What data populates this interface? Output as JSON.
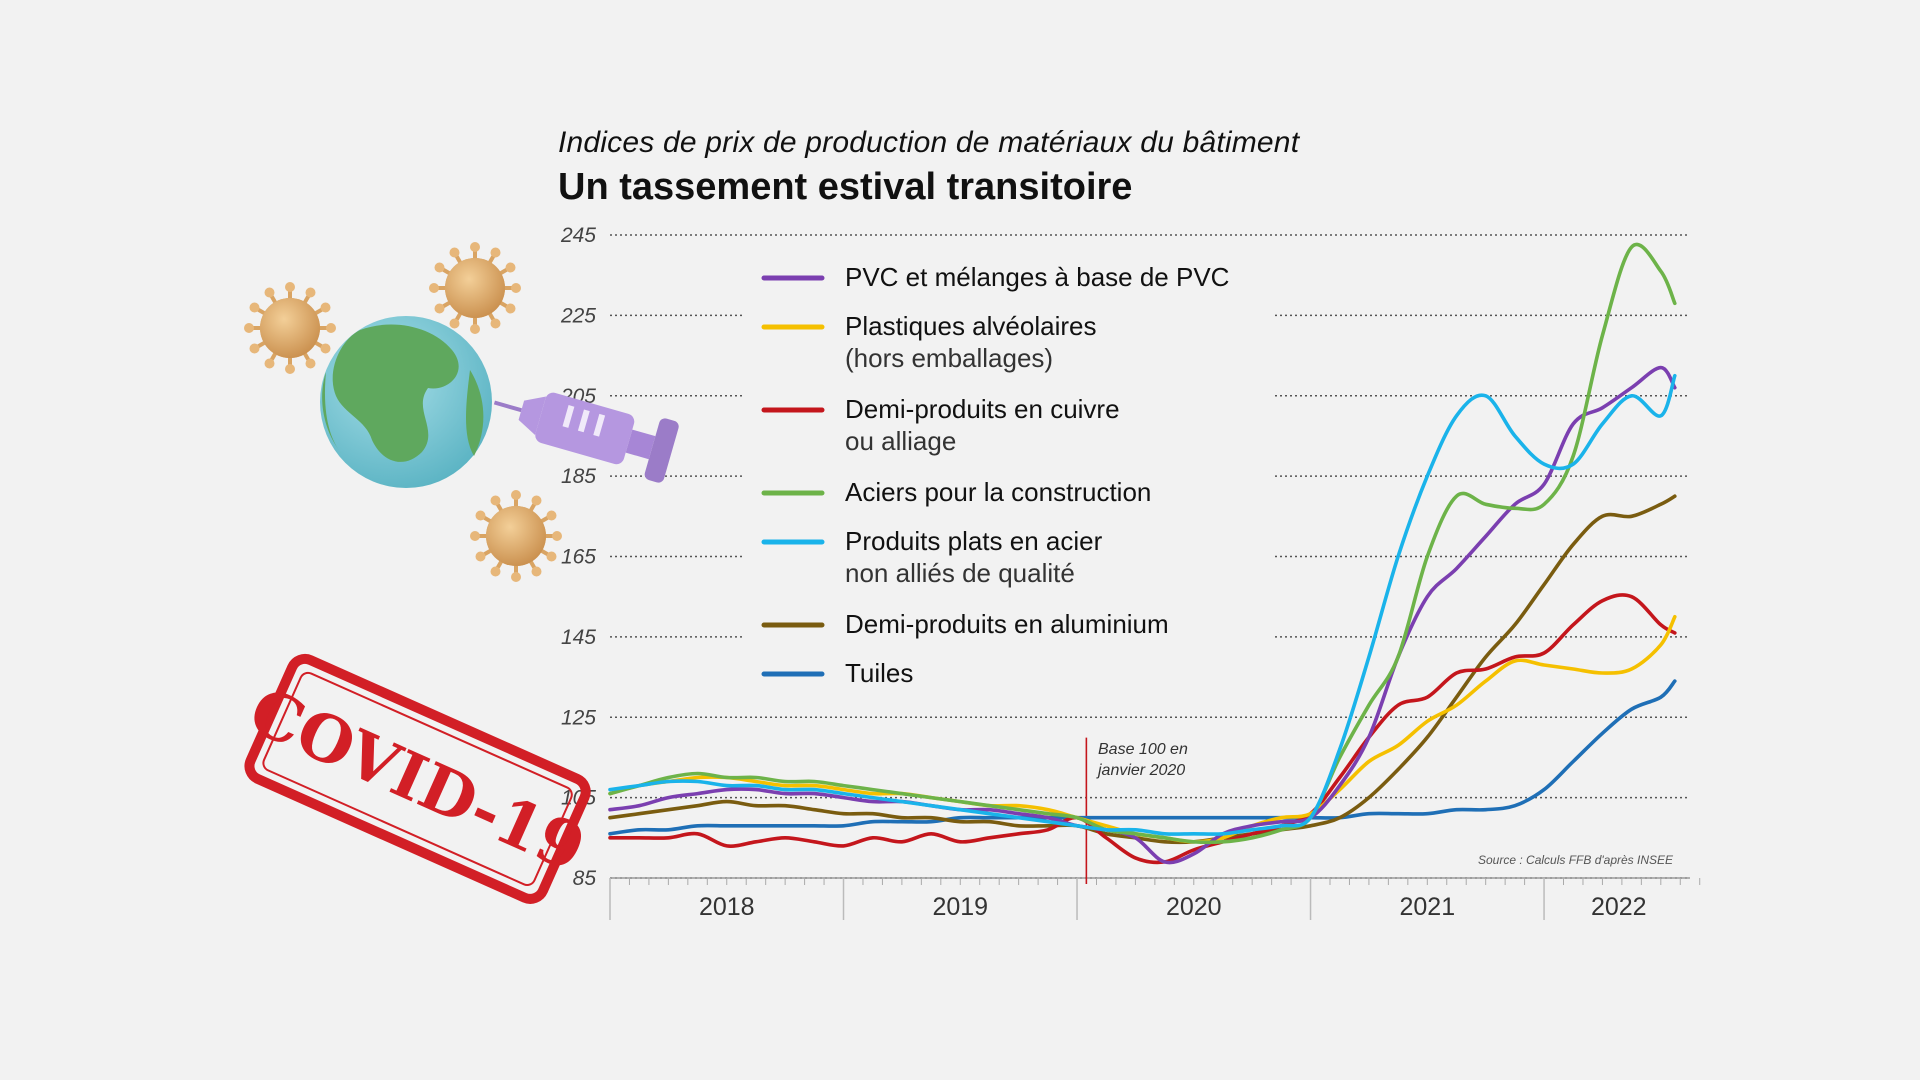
{
  "subtitle": "Indices de prix de production de matériaux du bâtiment",
  "title": "Un tassement estival transitoire",
  "source": "Source : Calculs FFB d'après INSEE",
  "annotation": [
    "Base 100 en",
    "janvier 2020"
  ],
  "stamp": "COVID-19",
  "icons": [
    "virus-icon",
    "globe-icon",
    "syringe-icon"
  ],
  "colors": {
    "pvc": "#7b3fb0",
    "plastiques": "#f5c000",
    "cuivre": "#c4161c",
    "aciers": "#6db349",
    "plats": "#1ab3ea",
    "aluminium": "#7a5c10",
    "tuiles": "#1f6fb6",
    "base_line": "#c4161c",
    "stamp": "#d21f26"
  },
  "chart_data": {
    "type": "line",
    "title": "Un tassement estival transitoire",
    "subtitle": "Indices de prix de production de matériaux du bâtiment",
    "xlabel": "",
    "ylabel": "",
    "ylim": [
      85,
      245
    ],
    "yticks": [
      "85",
      "105",
      "125",
      "145",
      "165",
      "185",
      "205",
      "225",
      "245"
    ],
    "xlim": [
      2018,
      2022.625
    ],
    "xticks": [
      {
        "label": "2018",
        "pos": 2018.5
      },
      {
        "label": "2019",
        "pos": 2019.5
      },
      {
        "label": "2020",
        "pos": 2020.5
      },
      {
        "label": "2021",
        "pos": 2021.5
      },
      {
        "label": "2022",
        "pos": 2022.32
      }
    ],
    "grid": true,
    "base_marker_x": 2020.04,
    "legend_position": "top-left",
    "x": [
      2018.0,
      2018.125,
      2018.25,
      2018.375,
      2018.5,
      2018.625,
      2018.75,
      2018.875,
      2019.0,
      2019.125,
      2019.25,
      2019.375,
      2019.5,
      2019.625,
      2019.75,
      2019.875,
      2020.0,
      2020.125,
      2020.25,
      2020.375,
      2020.5,
      2020.625,
      2020.75,
      2020.875,
      2021.0,
      2021.125,
      2021.25,
      2021.375,
      2021.5,
      2021.625,
      2021.75,
      2021.875,
      2022.0,
      2022.125,
      2022.25,
      2022.375,
      2022.5,
      2022.56
    ],
    "series": [
      {
        "name": "PVC et mélanges à base de PVC",
        "key": "pvc",
        "legend": [
          "PVC et mélanges à base de PVC"
        ],
        "values": [
          102,
          103,
          105,
          106,
          107,
          107,
          106,
          106,
          105,
          104,
          104,
          103,
          102,
          102,
          101,
          100,
          98,
          97,
          95,
          89,
          91,
          96,
          98,
          99,
          100,
          108,
          120,
          140,
          155,
          162,
          170,
          178,
          183,
          198,
          202,
          207,
          212,
          207
        ]
      },
      {
        "name": "Plastiques alvéolaires (hors emballages)",
        "key": "plastiques",
        "legend": [
          "Plastiques alvéolaires",
          "(hors emballages)"
        ],
        "values": [
          106,
          108,
          109,
          110,
          110,
          109,
          108,
          108,
          107,
          106,
          106,
          105,
          104,
          103,
          103,
          102,
          100,
          98,
          96,
          95,
          94,
          95,
          98,
          100,
          101,
          107,
          114,
          118,
          124,
          128,
          134,
          139,
          138,
          137,
          136,
          137,
          143,
          150
        ]
      },
      {
        "name": "Demi-produits en cuivre ou alliage",
        "key": "cuivre",
        "legend": [
          "Demi-produits en cuivre",
          "ou alliage"
        ],
        "values": [
          95,
          95,
          95,
          96,
          93,
          94,
          95,
          94,
          93,
          95,
          94,
          96,
          94,
          95,
          96,
          97,
          100,
          95,
          90,
          89,
          92,
          94,
          96,
          98,
          101,
          110,
          120,
          128,
          130,
          136,
          137,
          140,
          141,
          148,
          154,
          155,
          148,
          146
        ]
      },
      {
        "name": "Aciers pour la construction",
        "key": "aciers",
        "legend": [
          "Aciers pour la construction"
        ],
        "values": [
          106,
          108,
          110,
          111,
          110,
          110,
          109,
          109,
          108,
          107,
          106,
          105,
          104,
          103,
          102,
          101,
          100,
          97,
          96,
          95,
          94,
          94,
          95,
          97,
          100,
          115,
          128,
          140,
          165,
          180,
          178,
          177,
          178,
          190,
          220,
          242,
          236,
          228
        ]
      },
      {
        "name": "Produits plats en acier non alliés de qualité",
        "key": "plats",
        "legend": [
          "Produits plats en acier",
          "non alliés de qualité"
        ],
        "values": [
          107,
          108,
          109,
          109,
          108,
          108,
          107,
          107,
          106,
          105,
          104,
          103,
          102,
          101,
          100,
          99,
          98,
          97,
          97,
          96,
          96,
          96,
          97,
          98,
          100,
          117,
          140,
          165,
          185,
          200,
          205,
          195,
          188,
          188,
          198,
          205,
          200,
          210
        ]
      },
      {
        "name": "Demi-produits en aluminium",
        "key": "aluminium",
        "legend": [
          "Demi-produits en aluminium"
        ],
        "values": [
          100,
          101,
          102,
          103,
          104,
          103,
          103,
          102,
          101,
          101,
          100,
          100,
          99,
          99,
          98,
          98,
          98,
          96,
          95,
          94,
          94,
          95,
          96,
          97,
          98,
          100,
          105,
          112,
          120,
          130,
          140,
          148,
          158,
          168,
          175,
          175,
          178,
          180
        ]
      },
      {
        "name": "Tuiles",
        "key": "tuiles",
        "legend": [
          "Tuiles"
        ],
        "values": [
          96,
          97,
          97,
          98,
          98,
          98,
          98,
          98,
          98,
          99,
          99,
          99,
          100,
          100,
          100,
          100,
          100,
          100,
          100,
          100,
          100,
          100,
          100,
          100,
          100,
          100,
          101,
          101,
          101,
          102,
          102,
          103,
          107,
          114,
          121,
          127,
          130,
          134
        ]
      }
    ]
  }
}
